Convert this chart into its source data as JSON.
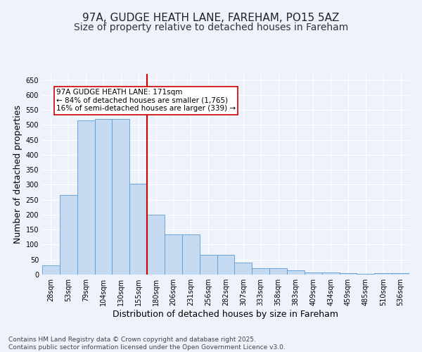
{
  "title": "97A, GUDGE HEATH LANE, FAREHAM, PO15 5AZ",
  "subtitle": "Size of property relative to detached houses in Fareham",
  "xlabel": "Distribution of detached houses by size in Fareham",
  "ylabel": "Number of detached properties",
  "categories": [
    "28sqm",
    "53sqm",
    "79sqm",
    "104sqm",
    "130sqm",
    "155sqm",
    "180sqm",
    "206sqm",
    "231sqm",
    "256sqm",
    "282sqm",
    "307sqm",
    "333sqm",
    "358sqm",
    "383sqm",
    "409sqm",
    "434sqm",
    "459sqm",
    "485sqm",
    "510sqm",
    "536sqm"
  ],
  "values": [
    30,
    265,
    515,
    520,
    520,
    303,
    199,
    135,
    135,
    67,
    67,
    39,
    20,
    20,
    15,
    8,
    8,
    5,
    2,
    4,
    4
  ],
  "bar_color": "#c5d9f0",
  "bar_edge_color": "#5b9bd5",
  "vline_x_index": 6,
  "vline_color": "#cc0000",
  "annotation_text": "97A GUDGE HEATH LANE: 171sqm\n← 84% of detached houses are smaller (1,765)\n16% of semi-detached houses are larger (339) →",
  "annotation_box_color": "#ffffff",
  "annotation_box_edge_color": "#cc0000",
  "ylim": [
    0,
    670
  ],
  "yticks": [
    0,
    50,
    100,
    150,
    200,
    250,
    300,
    350,
    400,
    450,
    500,
    550,
    600,
    650
  ],
  "background_color": "#edf2fb",
  "grid_color": "#ffffff",
  "title_fontsize": 11,
  "subtitle_fontsize": 10,
  "axis_label_fontsize": 9,
  "tick_fontsize": 7,
  "annotation_fontsize": 7.5,
  "footer_text": "Contains HM Land Registry data © Crown copyright and database right 2025.\nContains public sector information licensed under the Open Government Licence v3.0.",
  "footer_fontsize": 6.5
}
